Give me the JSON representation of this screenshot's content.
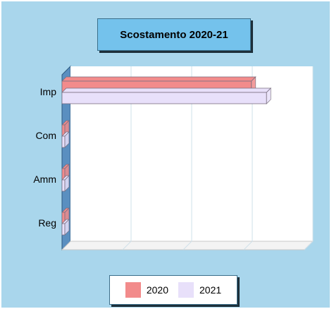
{
  "chart_data": {
    "type": "bar",
    "orientation": "horizontal",
    "title": "Scostamento 2020-21",
    "categories": [
      "Imp",
      "Com",
      "Amm",
      "Reg"
    ],
    "series": [
      {
        "name": "2020",
        "values": [
          100,
          0,
          0,
          0
        ],
        "color": "#f28b8b"
      },
      {
        "name": "2021",
        "values": [
          108,
          0,
          0,
          0
        ],
        "color": "#e8e0fa"
      }
    ],
    "xlim": [
      0,
      128
    ],
    "grid": true,
    "legend_position": "bottom"
  },
  "colors": {
    "background": "#a9d6ec",
    "title_box": "#74c2ec",
    "side_wall": "#5a8fc0"
  }
}
